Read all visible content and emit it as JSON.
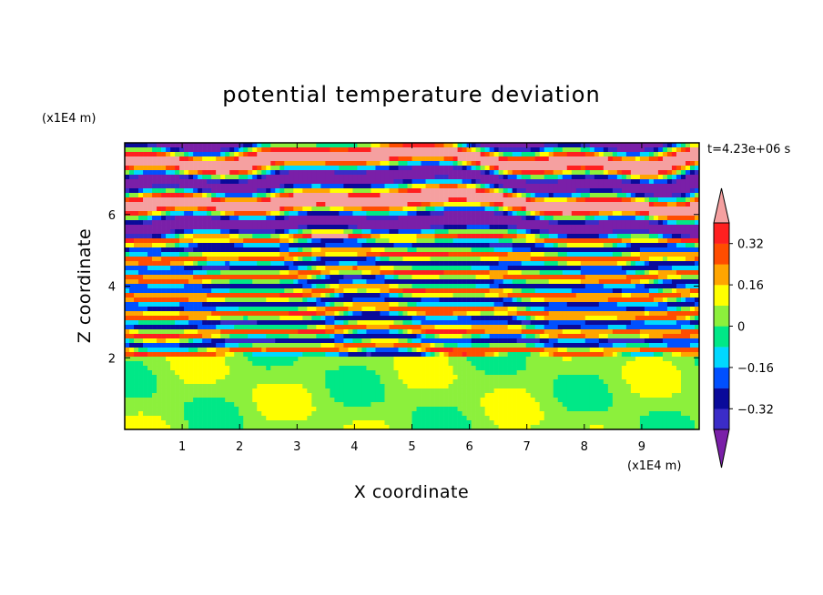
{
  "chart_data": {
    "type": "heatmap",
    "title": "potential temperature deviation",
    "xlabel": "X coordinate",
    "ylabel": "Z coordinate",
    "x_unit": "(x1E4 m)",
    "y_unit": "(x1E4 m)",
    "time_label": "t=4.23e+06 s",
    "xlim": [
      0,
      10
    ],
    "ylim": [
      0,
      8
    ],
    "x_ticks": [
      "1",
      "2",
      "3",
      "4",
      "5",
      "6",
      "7",
      "8",
      "9"
    ],
    "y_ticks": [
      "2",
      "4",
      "6"
    ],
    "grid": false,
    "colorbar": {
      "position": "right",
      "labels": [
        "0.32",
        "0.16",
        "0",
        "-0.16",
        "-0.32"
      ],
      "levels": [
        -0.4,
        -0.32,
        -0.24,
        -0.16,
        -0.08,
        0,
        0.08,
        0.16,
        0.24,
        0.32,
        0.4
      ],
      "colors_low_to_high": [
        "#7a1fa8",
        "#3b2cc8",
        "#0a0a9a",
        "#0050ff",
        "#00d8ff",
        "#00e887",
        "#8cf03c",
        "#ffff00",
        "#ffa500",
        "#ff4d00",
        "#ff2020",
        "#f5a0a0"
      ]
    },
    "field_bands": [
      {
        "z_range": [
          0,
          2
        ],
        "description": "near-neutral",
        "dominant_values": [
          0,
          0.08
        ]
      },
      {
        "z_range": [
          2,
          5.3
        ],
        "description": "mixed small-scale layers",
        "dominant_values": [
          -0.24,
          0.24
        ]
      },
      {
        "z_range": [
          5.3,
          8
        ],
        "description": "alternating strong layers",
        "dominant_values": [
          -0.4,
          0.4
        ]
      }
    ]
  }
}
